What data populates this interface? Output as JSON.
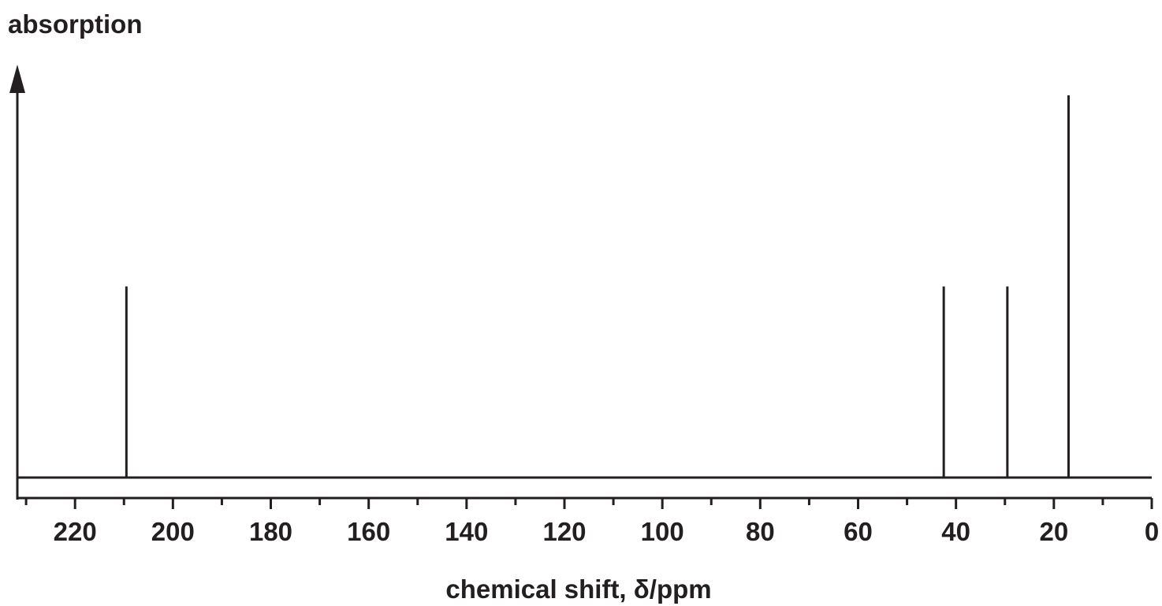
{
  "chart_data": {
    "type": "bar",
    "title": "",
    "ylabel": "absorption",
    "xlabel": "chemical shift, δ/ppm",
    "xlim": [
      230,
      0
    ],
    "x_reversed": true,
    "ylim": [
      0,
      1
    ],
    "grid": false,
    "x_ticks_major": [
      220,
      200,
      180,
      160,
      140,
      120,
      100,
      80,
      60,
      40,
      20,
      0
    ],
    "x_tick_labels": [
      "220",
      "200",
      "180",
      "160",
      "140",
      "120",
      "100",
      "80",
      "60",
      "40",
      "20",
      "0"
    ],
    "x_ticks_minor": [
      230,
      210,
      190,
      170,
      150,
      130,
      110,
      90,
      70,
      50,
      30,
      10
    ],
    "peaks": [
      {
        "shift": 209.5,
        "height": 0.5
      },
      {
        "shift": 42.5,
        "height": 0.5
      },
      {
        "shift": 29.5,
        "height": 0.5
      },
      {
        "shift": 17.0,
        "height": 1.0
      }
    ],
    "color": "#231f20"
  }
}
